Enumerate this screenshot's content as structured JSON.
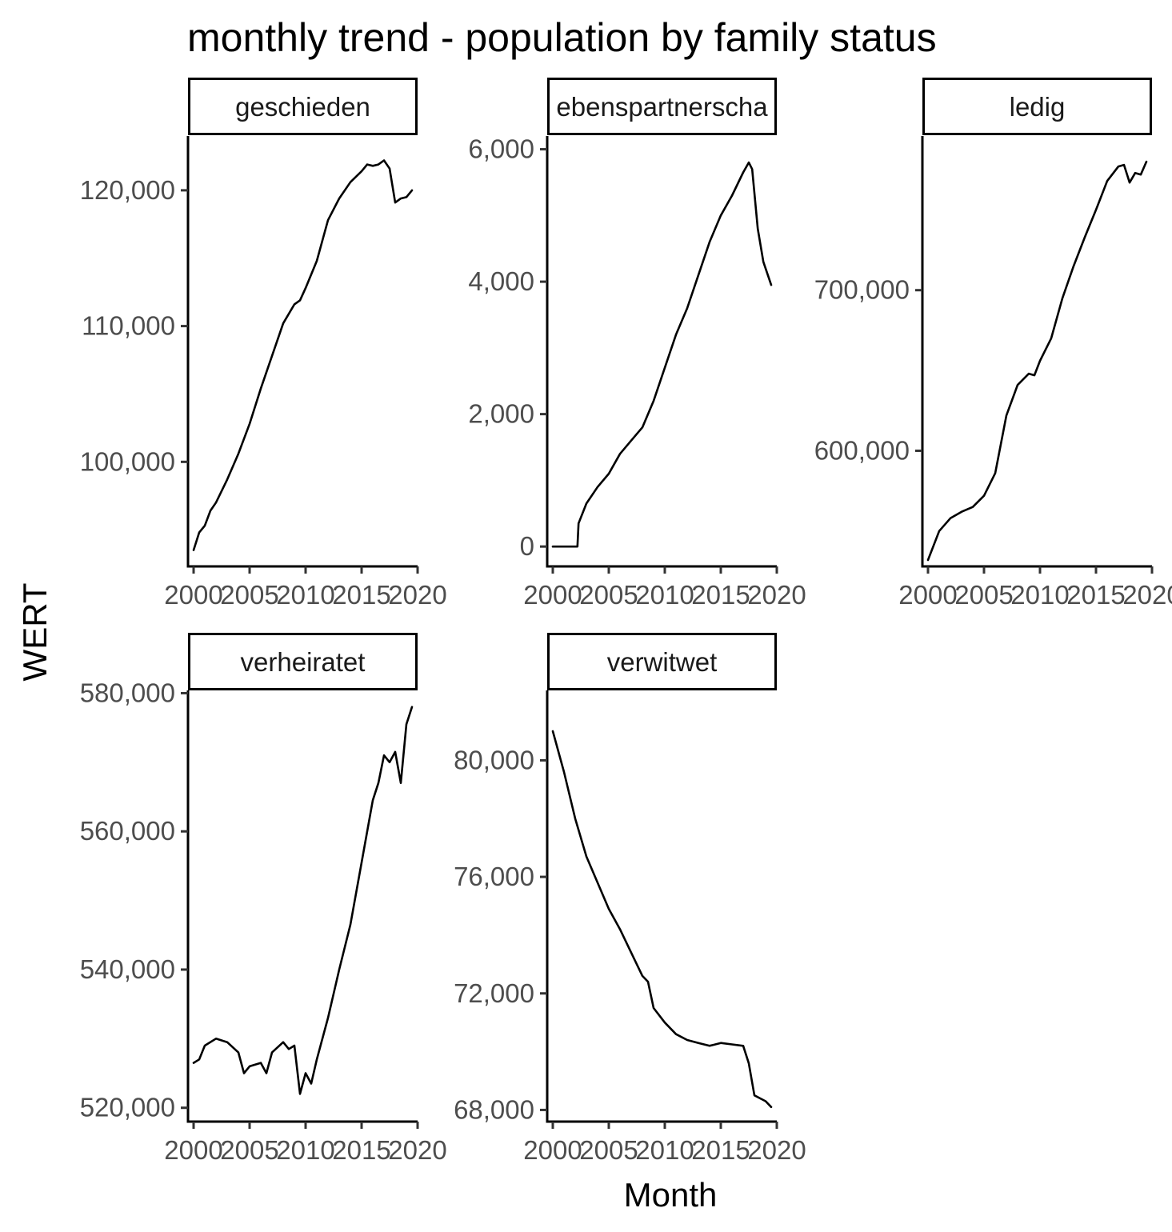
{
  "chart_data": {
    "type": "line",
    "title": "monthly trend - population by family status",
    "xlabel": "Month",
    "ylabel": "WERT",
    "x_ticks": [
      "2000",
      "2005",
      "2010",
      "2015",
      "2020"
    ],
    "xlim": [
      1999.5,
      2020.0
    ],
    "grid": false,
    "legend": "none",
    "line_color": "#000000",
    "panels": [
      {
        "name": "geschieden",
        "ylim": [
          92300,
          124000
        ],
        "y_ticks": [
          100000,
          110000,
          120000
        ],
        "y_tick_labels": [
          "100,000",
          "110,000",
          "120,000"
        ],
        "x": [
          2000.0,
          2000.5,
          2001.0,
          2001.5,
          2002.0,
          2003.0,
          2004.0,
          2005.0,
          2006.0,
          2007.0,
          2008.0,
          2009.0,
          2009.5,
          2010.0,
          2011.0,
          2012.0,
          2013.0,
          2014.0,
          2015.0,
          2015.5,
          2016.0,
          2016.5,
          2017.0,
          2017.5,
          2018.0,
          2018.5,
          2019.0,
          2019.5
        ],
        "y": [
          93500,
          94800,
          95300,
          96400,
          97000,
          98700,
          100600,
          102800,
          105400,
          107800,
          110200,
          111600,
          111900,
          112800,
          114800,
          117800,
          119400,
          120600,
          121400,
          121900,
          121800,
          121900,
          122200,
          121600,
          119100,
          119400,
          119500,
          120000
        ]
      },
      {
        "name": "lebenspartnerschaft",
        "strip_label": "ebenspartnerscha",
        "ylim": [
          -300,
          6200
        ],
        "y_ticks": [
          0,
          2000,
          4000,
          6000
        ],
        "y_tick_labels": [
          "0",
          "2,000",
          "4,000",
          "6,000"
        ],
        "x": [
          2000.0,
          2002.2,
          2002.3,
          2003.0,
          2004.0,
          2005.0,
          2006.0,
          2007.0,
          2008.0,
          2009.0,
          2010.0,
          2011.0,
          2012.0,
          2013.0,
          2014.0,
          2015.0,
          2016.0,
          2017.0,
          2017.5,
          2017.8,
          2018.3,
          2018.8,
          2019.2,
          2019.5
        ],
        "y": [
          0,
          0,
          350,
          650,
          900,
          1100,
          1400,
          1600,
          1800,
          2200,
          2700,
          3200,
          3600,
          4100,
          4600,
          5000,
          5300,
          5650,
          5800,
          5700,
          4800,
          4300,
          4100,
          3950
        ]
      },
      {
        "name": "ledig",
        "ylim": [
          528000,
          796000
        ],
        "y_ticks": [
          600000,
          700000
        ],
        "y_tick_labels": [
          "600,000",
          "700,000"
        ],
        "x": [
          2000.0,
          2001.0,
          2002.0,
          2003.0,
          2004.0,
          2005.0,
          2006.0,
          2007.0,
          2008.0,
          2009.0,
          2009.5,
          2010.0,
          2011.0,
          2012.0,
          2013.0,
          2014.0,
          2015.0,
          2016.0,
          2017.0,
          2017.5,
          2018.0,
          2018.5,
          2019.0,
          2019.5
        ],
        "y": [
          532000,
          550000,
          558000,
          562000,
          565000,
          572000,
          586000,
          622000,
          641000,
          648000,
          647000,
          656000,
          670000,
          695000,
          715000,
          733000,
          750000,
          768000,
          777000,
          778000,
          767000,
          773000,
          772000,
          780000
        ]
      },
      {
        "name": "verheiratet",
        "ylim": [
          518000,
          580400
        ],
        "y_ticks": [
          520000,
          540000,
          560000,
          580000
        ],
        "y_tick_labels": [
          "520,000",
          "540,000",
          "560,000",
          "580,000"
        ],
        "x": [
          2000.0,
          2000.5,
          2001.0,
          2002.0,
          2003.0,
          2004.0,
          2004.5,
          2005.0,
          2006.0,
          2006.5,
          2007.0,
          2008.0,
          2008.5,
          2009.0,
          2009.5,
          2010.0,
          2010.5,
          2011.0,
          2012.0,
          2013.0,
          2014.0,
          2015.0,
          2016.0,
          2016.5,
          2017.0,
          2017.5,
          2018.0,
          2018.5,
          2019.0,
          2019.5
        ],
        "y": [
          526500,
          527000,
          529000,
          530000,
          529500,
          528000,
          525000,
          526000,
          526500,
          525000,
          528000,
          529500,
          528500,
          529000,
          522000,
          525000,
          523500,
          527000,
          533000,
          540000,
          546500,
          555500,
          564500,
          567000,
          571000,
          570000,
          571500,
          567000,
          575500,
          578000
        ]
      },
      {
        "name": "verwitwet",
        "ylim": [
          67600,
          82400
        ],
        "y_ticks": [
          68000,
          72000,
          76000,
          80000
        ],
        "y_tick_labels": [
          "68,000",
          "72,000",
          "76,000",
          "80,000"
        ],
        "x": [
          2000.0,
          2001.0,
          2002.0,
          2003.0,
          2004.0,
          2005.0,
          2006.0,
          2007.0,
          2008.0,
          2008.5,
          2009.0,
          2010.0,
          2011.0,
          2012.0,
          2013.0,
          2014.0,
          2015.0,
          2016.0,
          2017.0,
          2017.5,
          2018.0,
          2018.5,
          2019.0,
          2019.5
        ],
        "y": [
          81000,
          79600,
          78000,
          76700,
          75800,
          74900,
          74200,
          73400,
          72600,
          72400,
          71500,
          71000,
          70600,
          70400,
          70300,
          70200,
          70300,
          70250,
          70200,
          69600,
          68500,
          68400,
          68300,
          68100
        ]
      }
    ]
  }
}
